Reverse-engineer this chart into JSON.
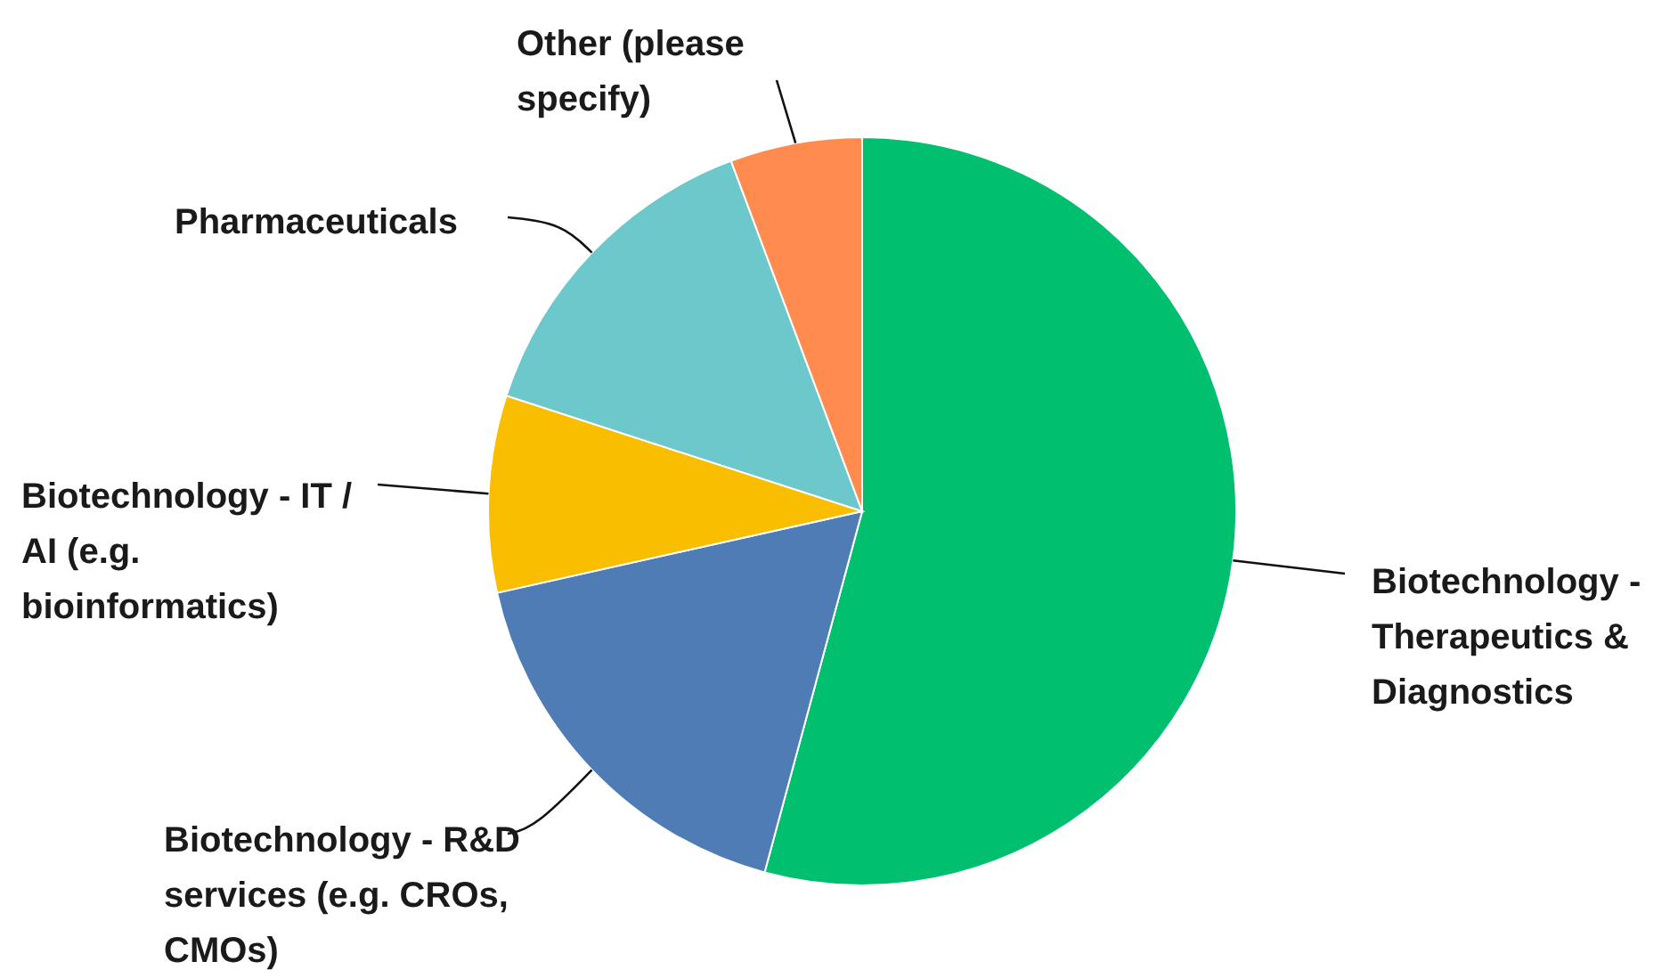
{
  "chart_data": {
    "type": "pie",
    "categories": [
      "Biotechnology - Therapeutics & Diagnostics",
      "Biotechnology - R&D services (e.g. CROs, CMOs)",
      "Biotechnology - IT / AI (e.g. bioinformatics)",
      "Pharmaceuticals",
      "Other (please specify)"
    ],
    "values": [
      54.2,
      17.3,
      8.5,
      14.3,
      5.7
    ],
    "colors": [
      "#00bf6f",
      "#507cb6",
      "#f9be00",
      "#6dc8cc",
      "#ff8b4f"
    ]
  }
}
